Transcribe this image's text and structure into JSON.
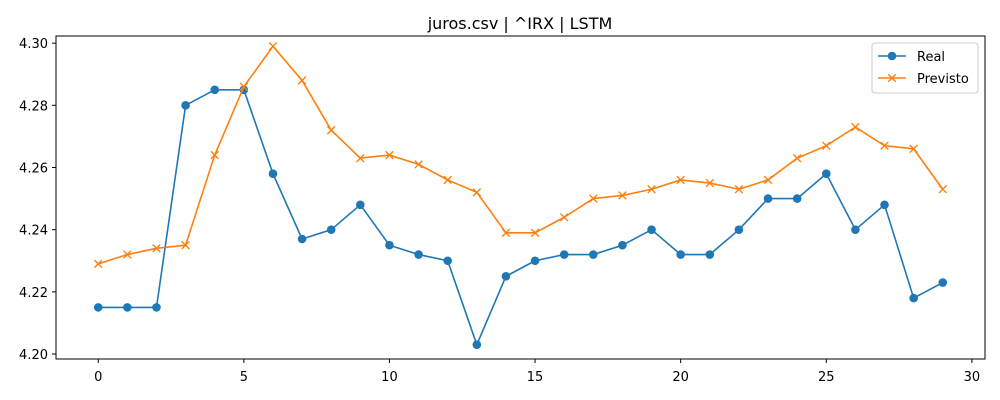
{
  "chart_data": {
    "type": "line",
    "title": "juros.csv | ^IRX | LSTM",
    "xlabel": "",
    "ylabel": "",
    "xlim": [
      -1.45,
      30.45
    ],
    "ylim": [
      4.1984,
      4.3023
    ],
    "xticks": [
      0,
      5,
      10,
      15,
      20,
      25,
      30
    ],
    "yticks": [
      4.2,
      4.22,
      4.24,
      4.26,
      4.28,
      4.3
    ],
    "grid": false,
    "legend_position": "top-right",
    "x": [
      0,
      1,
      2,
      3,
      4,
      5,
      6,
      7,
      8,
      9,
      10,
      11,
      12,
      13,
      14,
      15,
      16,
      17,
      18,
      19,
      20,
      21,
      22,
      23,
      24,
      25,
      26,
      27,
      28,
      29
    ],
    "series": [
      {
        "name": "Real",
        "color": "#1f77b4",
        "marker": "circle",
        "values": [
          4.215,
          4.215,
          4.215,
          4.28,
          4.285,
          4.285,
          4.258,
          4.237,
          4.24,
          4.248,
          4.235,
          4.232,
          4.23,
          4.203,
          4.225,
          4.23,
          4.232,
          4.232,
          4.235,
          4.24,
          4.232,
          4.232,
          4.24,
          4.25,
          4.25,
          4.258,
          4.24,
          4.248,
          4.218,
          4.223
        ]
      },
      {
        "name": "Previsto",
        "color": "#ff7f0e",
        "marker": "x",
        "values": [
          4.229,
          4.232,
          4.234,
          4.235,
          4.264,
          4.286,
          4.299,
          4.288,
          4.272,
          4.263,
          4.264,
          4.261,
          4.256,
          4.252,
          4.239,
          4.239,
          4.244,
          4.25,
          4.251,
          4.253,
          4.256,
          4.255,
          4.253,
          4.256,
          4.263,
          4.267,
          4.273,
          4.267,
          4.266,
          4.253
        ]
      }
    ]
  }
}
